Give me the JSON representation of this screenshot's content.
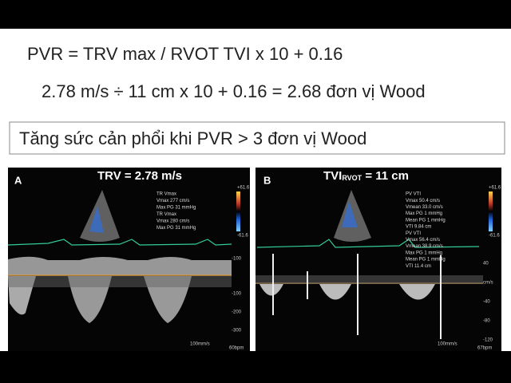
{
  "header": {
    "formula": "PVR = TRV max / RVOT TVI x 10 + 0.16",
    "calculation": "2.78 m/s ÷ 11 cm x 10 + 0.16 =  2.68 đơn vị Wood"
  },
  "box": {
    "text": "Tăng sức cản phổi khi PVR > 3  đơn vị Wood"
  },
  "panels": [
    {
      "label": "A",
      "title": "TRV = 2.78 m/s",
      "measurements": [
        "TR Vmax",
        "Vmax     277 cm/s",
        "Max PG   31 mmHg",
        "TR Vmax",
        "Vmax     280 cm/s",
        "Max PG   31 mmHg"
      ],
      "scale": [
        "+61.6",
        "-61.6",
        "-100",
        "-100",
        "-200",
        "-300"
      ],
      "footer": [
        "100mm/s",
        "60bpm"
      ]
    },
    {
      "label": "B",
      "title_main": "TVI",
      "title_sub": "RVOT",
      "title_end": " = 11 cm",
      "measurements": [
        "PV VTI",
        "Vmax     50.4 cm/s",
        "Vmean    33.0 cm/s",
        "Max PG     1 mmHg",
        "Mean PG    1 mmHg",
        "VTI       9.84 cm",
        "PV VTI",
        "Vmax     56.4 cm/s",
        "Vmean    38.9 cm/s",
        "Max PG     1 mmHg",
        "Mean PG    1 mmHg",
        "VTI       11.4 cm"
      ],
      "scale": [
        "+61.6",
        "-61.6",
        "40",
        "cm/s",
        "-40",
        "-80",
        "-120"
      ],
      "footer": [
        "100mm/s",
        "67bpm"
      ]
    }
  ]
}
